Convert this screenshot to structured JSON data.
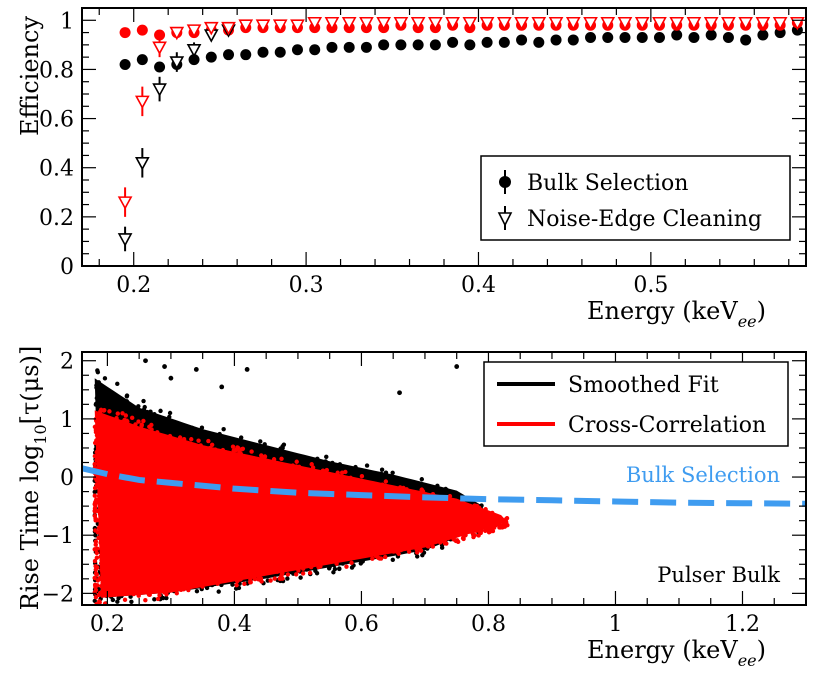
{
  "chart_data": [
    {
      "type": "scatter",
      "panel": "top",
      "xlabel": "Energy (keV",
      "xlabel_subscript": "ee",
      "xlabel_close": ")",
      "ylabel": "Efficiency",
      "xlim": [
        0.17,
        0.59
      ],
      "ylim": [
        0,
        1.05
      ],
      "xticks": [
        {
          "v": 0.2,
          "label": "0.2"
        },
        {
          "v": 0.3,
          "label": "0.3"
        },
        {
          "v": 0.4,
          "label": "0.4"
        },
        {
          "v": 0.5,
          "label": "0.5"
        }
      ],
      "yticks": [
        {
          "v": 0,
          "label": "0"
        },
        {
          "v": 0.2,
          "label": "0.2"
        },
        {
          "v": 0.4,
          "label": "0.4"
        },
        {
          "v": 0.6,
          "label": "0.6"
        },
        {
          "v": 0.8,
          "label": "0.8"
        },
        {
          "v": 1,
          "label": "1"
        }
      ],
      "legend": [
        {
          "label": "Bulk Selection",
          "marker": "circle"
        },
        {
          "label": "Noise-Edge Cleaning",
          "marker": "triangle-down"
        }
      ],
      "series": [
        {
          "name": "Bulk Selection (black)",
          "marker": "circle",
          "color": "#000000",
          "x": [
            0.195,
            0.205,
            0.215,
            0.225,
            0.235,
            0.245,
            0.255,
            0.265,
            0.275,
            0.285,
            0.295,
            0.305,
            0.315,
            0.325,
            0.335,
            0.345,
            0.355,
            0.365,
            0.375,
            0.385,
            0.395,
            0.405,
            0.415,
            0.425,
            0.435,
            0.445,
            0.455,
            0.465,
            0.475,
            0.485,
            0.495,
            0.505,
            0.515,
            0.525,
            0.535,
            0.545,
            0.555,
            0.565,
            0.575,
            0.585
          ],
          "y": [
            0.82,
            0.84,
            0.81,
            0.82,
            0.84,
            0.85,
            0.86,
            0.86,
            0.87,
            0.87,
            0.88,
            0.88,
            0.89,
            0.89,
            0.89,
            0.9,
            0.9,
            0.9,
            0.9,
            0.91,
            0.9,
            0.91,
            0.91,
            0.92,
            0.91,
            0.92,
            0.92,
            0.93,
            0.93,
            0.93,
            0.93,
            0.93,
            0.94,
            0.93,
            0.94,
            0.93,
            0.92,
            0.94,
            0.95,
            0.96
          ]
        },
        {
          "name": "Bulk Selection (red)",
          "marker": "circle",
          "color": "#ff0000",
          "x": [
            0.195,
            0.205,
            0.215,
            0.225,
            0.235,
            0.245,
            0.255,
            0.265,
            0.275,
            0.285,
            0.295,
            0.305,
            0.315,
            0.325,
            0.335,
            0.345,
            0.355,
            0.365,
            0.375,
            0.385,
            0.395,
            0.405,
            0.415,
            0.425,
            0.435,
            0.445,
            0.455,
            0.465,
            0.475,
            0.485,
            0.495,
            0.505,
            0.515,
            0.525,
            0.535,
            0.545,
            0.555,
            0.565,
            0.575,
            0.585
          ],
          "y": [
            0.95,
            0.96,
            0.94,
            0.95,
            0.95,
            0.96,
            0.96,
            0.97,
            0.97,
            0.97,
            0.97,
            0.97,
            0.97,
            0.97,
            0.97,
            0.97,
            0.98,
            0.97,
            0.97,
            0.98,
            0.97,
            0.98,
            0.98,
            0.98,
            0.98,
            0.98,
            0.98,
            0.98,
            0.98,
            0.98,
            0.98,
            0.98,
            0.98,
            0.98,
            0.98,
            0.98,
            0.98,
            0.98,
            0.98,
            0.99
          ]
        },
        {
          "name": "Noise-Edge Cleaning (black)",
          "marker": "triangle-down",
          "color": "#000000",
          "x": [
            0.195,
            0.205,
            0.215,
            0.225,
            0.235,
            0.245,
            0.255
          ],
          "y": [
            0.11,
            0.42,
            0.72,
            0.83,
            0.88,
            0.94,
            0.96
          ],
          "err": [
            0.05,
            0.06,
            0.05,
            0.04,
            0.03,
            0.02,
            0.02
          ]
        },
        {
          "name": "Noise-Edge Cleaning (red)",
          "marker": "triangle-down",
          "color": "#ff0000",
          "x": [
            0.195,
            0.205,
            0.215,
            0.225,
            0.235,
            0.245,
            0.255,
            0.265,
            0.275,
            0.285,
            0.295,
            0.305,
            0.315,
            0.325,
            0.335,
            0.345,
            0.355,
            0.365,
            0.375,
            0.385,
            0.395,
            0.405,
            0.415,
            0.425,
            0.435,
            0.445,
            0.455,
            0.465,
            0.475,
            0.485,
            0.495,
            0.505,
            0.515,
            0.525,
            0.535,
            0.545,
            0.555,
            0.565,
            0.575,
            0.585
          ],
          "y": [
            0.26,
            0.67,
            0.89,
            0.95,
            0.96,
            0.97,
            0.97,
            0.98,
            0.98,
            0.98,
            0.98,
            0.99,
            0.99,
            0.99,
            0.99,
            0.99,
            0.99,
            0.99,
            0.99,
            0.99,
            0.99,
            0.99,
            0.99,
            0.99,
            0.99,
            0.99,
            0.99,
            0.99,
            0.99,
            0.99,
            0.99,
            0.99,
            0.99,
            0.99,
            0.99,
            0.99,
            0.99,
            0.99,
            0.99,
            0.99
          ],
          "err": [
            0.06,
            0.06,
            0.04,
            0.02,
            0.02,
            0.01,
            0.01,
            0.01,
            0.01,
            0.01,
            0.01,
            0.01,
            0.01,
            0.01,
            0.01,
            0.01,
            0.01,
            0.01,
            0.01,
            0.01,
            0.01,
            0.01,
            0.01,
            0.01,
            0.01,
            0.01,
            0.01,
            0.01,
            0.01,
            0.01,
            0.01,
            0.01,
            0.01,
            0.01,
            0.01,
            0.01,
            0.01,
            0.01,
            0.01,
            0.01
          ]
        }
      ]
    },
    {
      "type": "scatter",
      "panel": "bottom",
      "xlabel": "Energy (keV",
      "xlabel_subscript": "ee",
      "xlabel_close": ")",
      "ylabel": "Rise Time log",
      "ylabel_subscript": "10",
      "ylabel_close": "[τ(μs)]",
      "xlim": [
        0.16,
        1.3
      ],
      "ylim": [
        -2.2,
        2.15
      ],
      "xticks": [
        {
          "v": 0.2,
          "label": "0.2"
        },
        {
          "v": 0.4,
          "label": "0.4"
        },
        {
          "v": 0.6,
          "label": "0.6"
        },
        {
          "v": 0.8,
          "label": "0.8"
        },
        {
          "v": 1,
          "label": "1"
        },
        {
          "v": 1.2,
          "label": "1.2"
        }
      ],
      "yticks": [
        {
          "v": -2,
          "label": "−2"
        },
        {
          "v": -1,
          "label": "−1"
        },
        {
          "v": 0,
          "label": "0"
        },
        {
          "v": 1,
          "label": "1"
        },
        {
          "v": 2,
          "label": "2"
        }
      ],
      "legend": [
        {
          "label": "Smoothed Fit",
          "color": "#000000"
        },
        {
          "label": "Cross-Correlation",
          "color": "#ff0000"
        }
      ],
      "annotations": {
        "curve_label": "Bulk Selection",
        "curve_label_color": "#3f9cf0",
        "panel_label": "Pulser Bulk"
      },
      "series": [
        {
          "name": "Smoothed Fit",
          "color": "#000000",
          "band_upper": [
            [
              0.18,
              1.9
            ],
            [
              0.25,
              1.35
            ],
            [
              0.35,
              0.95
            ],
            [
              0.45,
              0.65
            ],
            [
              0.55,
              0.35
            ],
            [
              0.65,
              0.1
            ],
            [
              0.75,
              -0.2
            ],
            [
              0.8,
              -0.55
            ]
          ],
          "band_lower": [
            [
              0.18,
              -2.2
            ],
            [
              0.3,
              -2.1
            ],
            [
              0.45,
              -1.85
            ],
            [
              0.6,
              -1.55
            ],
            [
              0.7,
              -1.35
            ],
            [
              0.8,
              -0.9
            ]
          ],
          "outliers": [
            [
              0.26,
              2.0
            ],
            [
              0.29,
              1.9
            ],
            [
              0.34,
              1.85
            ],
            [
              0.42,
              1.85
            ],
            [
              0.66,
              1.45
            ],
            [
              0.75,
              1.9
            ],
            [
              0.3,
              1.7
            ],
            [
              0.38,
              1.55
            ]
          ]
        },
        {
          "name": "Cross-Correlation",
          "color": "#ff0000",
          "band_upper": [
            [
              0.18,
              1.3
            ],
            [
              0.25,
              1.0
            ],
            [
              0.35,
              0.65
            ],
            [
              0.45,
              0.4
            ],
            [
              0.55,
              0.15
            ],
            [
              0.65,
              -0.1
            ],
            [
              0.75,
              -0.35
            ],
            [
              0.83,
              -0.7
            ]
          ],
          "band_lower": [
            [
              0.18,
              -2.2
            ],
            [
              0.3,
              -2.1
            ],
            [
              0.45,
              -1.8
            ],
            [
              0.6,
              -1.5
            ],
            [
              0.7,
              -1.3
            ],
            [
              0.83,
              -0.85
            ]
          ]
        },
        {
          "name": "Bulk Selection cut",
          "style": "dashed",
          "color": "#3f9cf0",
          "x": [
            0.16,
            0.2,
            0.25,
            0.3,
            0.4,
            0.5,
            0.6,
            0.7,
            0.8,
            0.9,
            1.0,
            1.1,
            1.2,
            1.3
          ],
          "y": [
            0.15,
            0.05,
            -0.05,
            -0.1,
            -0.2,
            -0.27,
            -0.31,
            -0.35,
            -0.38,
            -0.4,
            -0.42,
            -0.44,
            -0.45,
            -0.46
          ]
        }
      ]
    }
  ]
}
